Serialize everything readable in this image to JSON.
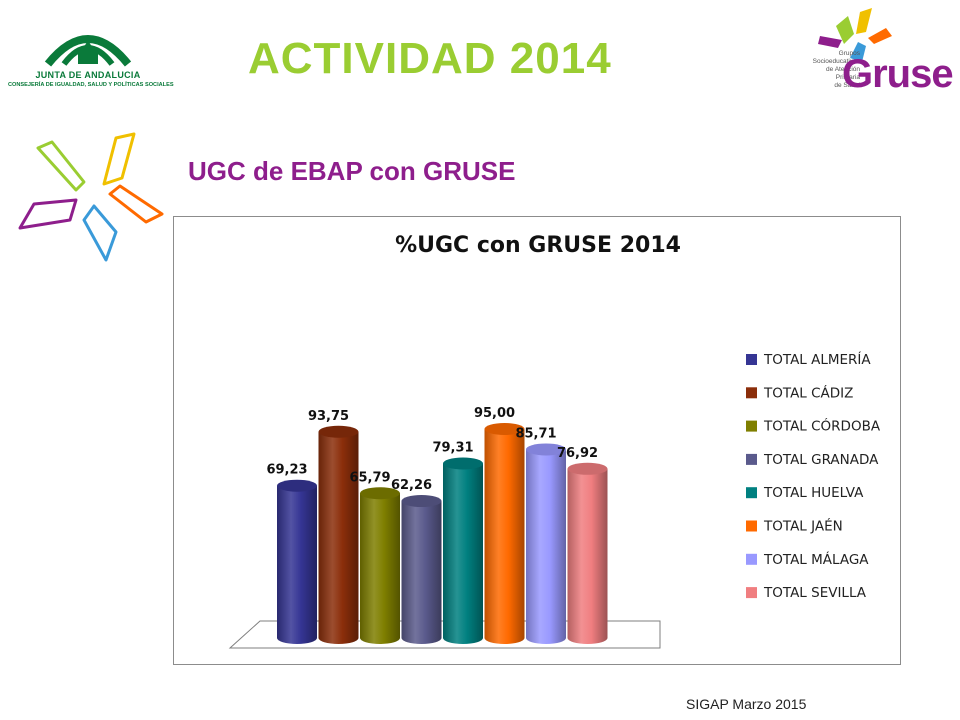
{
  "header": {
    "title": "ACTIVIDAD 2014",
    "subtitle": "UGC de EBAP con GRUSE",
    "junta_logo_line1": "JUNTA DE ANDALUCIA",
    "junta_logo_line2": "CONSEJERÍA DE IGUALDAD, SALUD Y POLÍTICAS SOCIALES",
    "gruse_logo_small": [
      "Grupos",
      "Socioeducativos",
      "de Atención",
      "Primaria",
      "de Salud"
    ],
    "gruse_logo_big": "Gruse"
  },
  "footer": {
    "text": "SIGAP Marzo 2015"
  },
  "colors": {
    "title": "#9acd32",
    "subtitle": "#8e1e8c"
  },
  "chart_data": {
    "type": "bar",
    "style": "3d-cylinder",
    "title": "%UGC con GRUSE 2014",
    "categories": [
      "TOTAL ALMERÍA",
      "TOTAL CÁDIZ",
      "TOTAL CÓRDOBA",
      "TOTAL GRANADA",
      "TOTAL HUELVA",
      "TOTAL JAÉN",
      "TOTAL MÁLAGA",
      "TOTAL SEVILLA"
    ],
    "values": [
      69.23,
      93.75,
      65.79,
      62.26,
      79.31,
      95.0,
      85.71,
      76.92
    ],
    "data_labels": [
      "69,23",
      "93,75",
      "65,79",
      "62,26",
      "79,31",
      "95,00",
      "85,71",
      "76,92"
    ],
    "colors": [
      "#353594",
      "#8b2e0a",
      "#7f7f00",
      "#5a5a8c",
      "#008080",
      "#ff6a00",
      "#9999ff",
      "#f07e80"
    ],
    "legend_position": "right",
    "grid": false
  }
}
